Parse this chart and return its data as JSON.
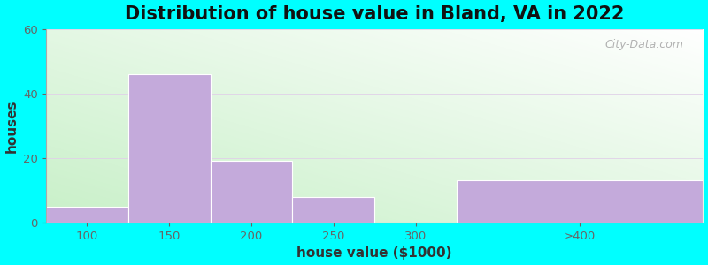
{
  "title": "Distribution of house value in Bland, VA in 2022",
  "xlabel": "house value ($1000)",
  "ylabel": "houses",
  "bar_values": [
    5,
    46,
    19,
    8,
    0,
    13
  ],
  "bin_edges": [
    75,
    125,
    175,
    225,
    275,
    325,
    475
  ],
  "tick_positions": [
    100,
    150,
    200,
    250,
    300,
    400
  ],
  "tick_labels": [
    "100",
    "150",
    "200",
    "250",
    "300",
    ">400"
  ],
  "bar_color": "#C4AADB",
  "bar_edgecolor": "#FFFFFF",
  "ylim": [
    0,
    60
  ],
  "yticks": [
    0,
    20,
    40,
    60
  ],
  "xlim": [
    75,
    475
  ],
  "background_color": "#00FFFF",
  "title_fontsize": 15,
  "axis_label_fontsize": 11,
  "watermark_text": "City-Data.com"
}
